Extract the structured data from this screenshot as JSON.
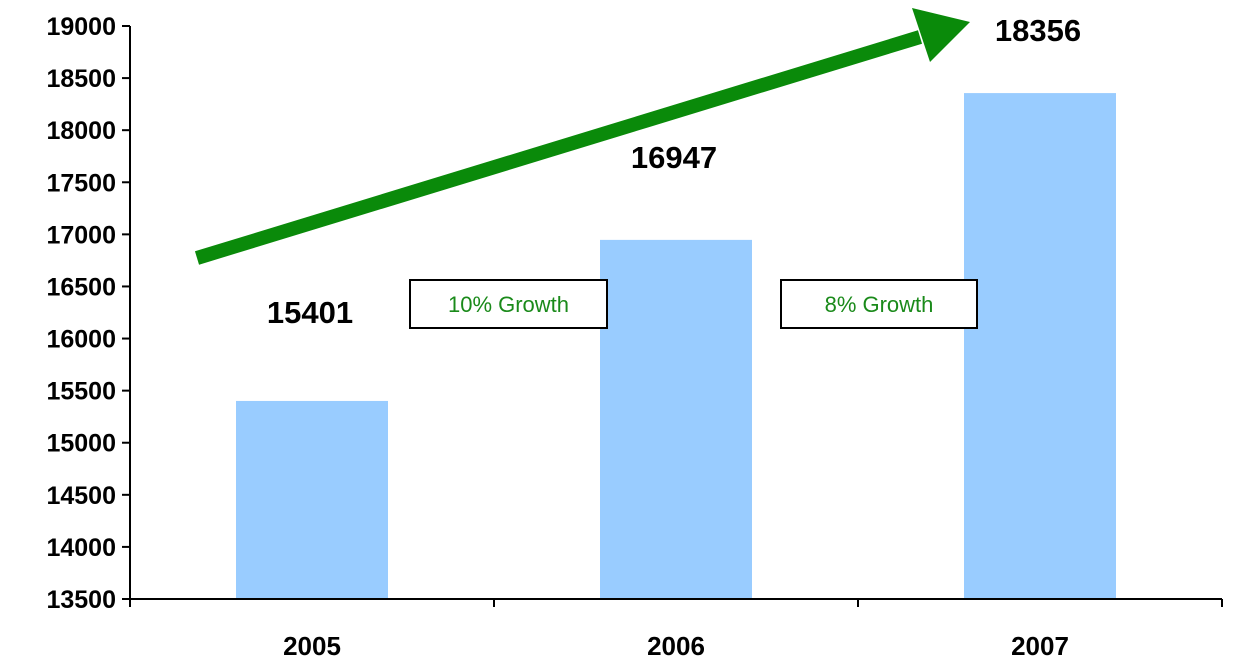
{
  "chart_data": {
    "type": "bar",
    "categories": [
      "2005",
      "2006",
      "2007"
    ],
    "values": [
      15401,
      16947,
      18356
    ],
    "data_labels": [
      "15401",
      "16947",
      "18356"
    ],
    "title": "",
    "xlabel": "",
    "ylabel": "",
    "ylim": [
      13500,
      19000
    ],
    "yticks": [
      13500,
      14000,
      14500,
      15000,
      15500,
      16000,
      16500,
      17000,
      17500,
      18000,
      18500,
      19000
    ],
    "grid": false,
    "legend": "none",
    "bar_color": "#99ccff",
    "annotations": [
      {
        "text": "10% Growth",
        "between": [
          "2005",
          "2006"
        ],
        "color": "#1a8a1a"
      },
      {
        "text": "8% Growth",
        "between": [
          "2006",
          "2007"
        ],
        "color": "#1a8a1a"
      }
    ],
    "trend_arrow": {
      "color": "#0a8a0a",
      "direction": "up-right"
    }
  }
}
